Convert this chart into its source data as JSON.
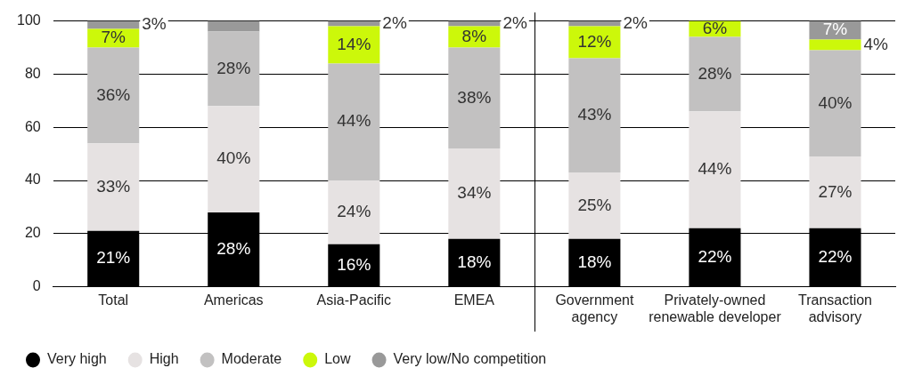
{
  "chart_data": {
    "type": "bar",
    "stacked": true,
    "categories": [
      "Total",
      "Americas",
      "Asia-Pacific",
      "EMEA",
      "Government agency",
      "Privately-owned renewable developer",
      "Transaction advisory"
    ],
    "series": [
      {
        "name": "Very high",
        "color": "#000000",
        "values": [
          21,
          28,
          16,
          18,
          18,
          22,
          22
        ],
        "value_labels": [
          "21%",
          "28%",
          "16%",
          "18%",
          "18%",
          "22%",
          "22%"
        ]
      },
      {
        "name": "High",
        "color": "#e6e2e2",
        "values": [
          33,
          40,
          24,
          34,
          25,
          44,
          27
        ],
        "value_labels": [
          "33%",
          "40%",
          "24%",
          "34%",
          "25%",
          "44%",
          "27%"
        ]
      },
      {
        "name": "Moderate",
        "color": "#c2c1c1",
        "values": [
          36,
          28,
          44,
          38,
          43,
          28,
          40
        ],
        "value_labels": [
          "36%",
          "28%",
          "44%",
          "38%",
          "43%",
          "28%",
          "40%"
        ]
      },
      {
        "name": "Low",
        "color": "#ccf80a",
        "values": [
          7,
          0,
          14,
          8,
          12,
          6,
          4
        ],
        "value_labels": [
          "7%",
          null,
          "14%",
          "8%",
          "12%",
          "6%",
          "4%"
        ]
      },
      {
        "name": "Very low/No competition",
        "color": "#999999",
        "values": [
          3,
          4,
          2,
          2,
          2,
          0,
          7
        ],
        "value_labels": [
          "3%",
          null,
          "2%",
          "2%",
          "2%",
          null,
          "7%"
        ]
      }
    ],
    "ylim": [
      0,
      100
    ],
    "yticks": [
      0,
      20,
      40,
      60,
      80,
      100
    ],
    "grid": "y",
    "legend": "bottom left",
    "marker": "circle"
  }
}
